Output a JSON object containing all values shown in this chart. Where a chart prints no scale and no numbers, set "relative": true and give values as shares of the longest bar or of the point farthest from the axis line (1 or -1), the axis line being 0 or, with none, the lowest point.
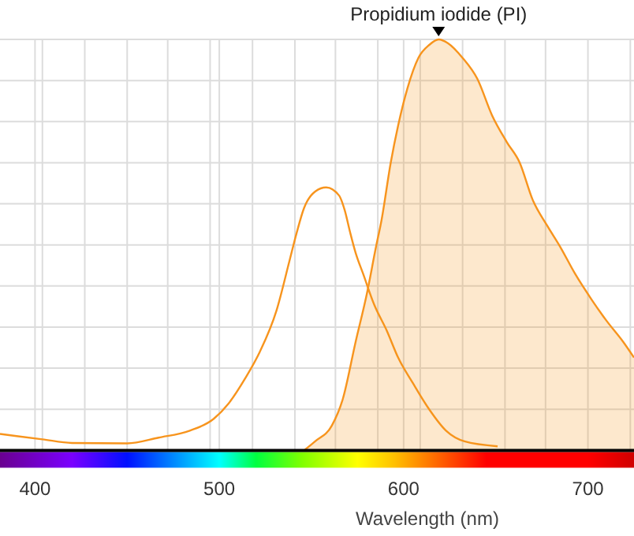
{
  "chart_data": {
    "type": "line",
    "relative": true,
    "xlabel": "Wavelength (nm)",
    "xlim": [
      381,
      725
    ],
    "xticks": [
      400,
      500,
      600,
      700,
      {
        "value": 404,
        "label": null
      },
      {
        "value": 427,
        "label": null
      },
      {
        "value": 450,
        "label": null
      },
      {
        "value": 472,
        "label": null
      },
      {
        "value": 495,
        "label": null
      },
      {
        "value": 518,
        "label": null
      },
      {
        "value": 541,
        "label": null
      },
      {
        "value": 563,
        "label": null
      },
      {
        "value": 586,
        "label": null
      },
      {
        "value": 609,
        "label": null
      },
      {
        "value": 632,
        "label": null
      },
      {
        "value": 655,
        "label": null
      },
      {
        "value": 677,
        "label": null
      },
      {
        "value": 723,
        "label": null
      }
    ],
    "grid": true,
    "annotations": [
      {
        "text": "Propidium iodide (PI)",
        "x": 619,
        "y": 1
      }
    ],
    "series": [
      {
        "color": "#f7941d",
        "x": [
          381,
          404,
          420,
          450,
          467,
          484,
          497,
          505,
          514,
          522,
          531,
          538,
          542,
          546,
          552,
          558,
          565,
          568,
          571,
          574,
          578,
          584,
          591,
          597,
          605,
          614,
          623,
          633,
          651
        ],
        "values": [
          0.04,
          0.027,
          0.018,
          0.017,
          0.031,
          0.048,
          0.077,
          0.114,
          0.175,
          0.24,
          0.34,
          0.46,
          0.53,
          0.59,
          0.63,
          0.64,
          0.62,
          0.585,
          0.53,
          0.48,
          0.43,
          0.355,
          0.29,
          0.226,
          0.164,
          0.099,
          0.048,
          0.022,
          0.01
        ]
      },
      {
        "type": "area",
        "color": "#f7941d",
        "x": [
          546,
          552,
          561,
          567,
          574,
          580,
          585,
          588,
          593,
          597,
          602,
          608,
          614,
          619,
          624,
          632,
          640,
          648,
          656,
          663,
          670,
          678,
          685,
          693,
          702,
          710,
          719,
          725
        ],
        "values": [
          0,
          0.022,
          0.06,
          0.125,
          0.265,
          0.38,
          0.495,
          0.56,
          0.7,
          0.79,
          0.88,
          0.955,
          0.987,
          1,
          0.991,
          0.955,
          0.904,
          0.815,
          0.75,
          0.7,
          0.61,
          0.546,
          0.495,
          0.43,
          0.367,
          0.316,
          0.265,
          0.226
        ]
      }
    ]
  }
}
